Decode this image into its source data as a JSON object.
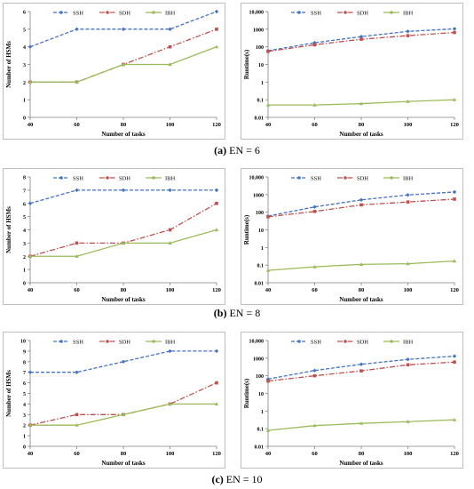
{
  "captions": [
    {
      "letter": "(a)",
      "text": "EN = 6"
    },
    {
      "letter": "(b)",
      "text": "EN = 8"
    },
    {
      "letter": "(c)",
      "text": "EN = 10"
    }
  ],
  "colors": {
    "SSH": "#4472c4",
    "SDH": "#c0504d",
    "IBH": "#9bbb59"
  },
  "chart_data": [
    {
      "id": "a-hsm",
      "type": "line",
      "scale": "linear",
      "xlabel": "Number of tasks",
      "ylabel": "Number of HSMs",
      "x": [
        40,
        60,
        80,
        100,
        120
      ],
      "xlim": [
        40,
        120
      ],
      "ylim": [
        0,
        6
      ],
      "yticks": [
        "0",
        "1",
        "2",
        "3",
        "4",
        "5",
        "6"
      ],
      "series": [
        {
          "name": "SSH",
          "values": [
            4,
            5,
            5,
            5,
            6
          ]
        },
        {
          "name": "SDH",
          "values": [
            2,
            2,
            3,
            4,
            5
          ]
        },
        {
          "name": "IBH",
          "values": [
            2,
            2,
            3,
            3,
            4
          ]
        }
      ]
    },
    {
      "id": "a-rt",
      "type": "line",
      "scale": "log",
      "xlabel": "Number of tasks",
      "ylabel": "Runtime(s)",
      "x": [
        40,
        60,
        80,
        100,
        120
      ],
      "xlim": [
        40,
        120
      ],
      "ylim": [
        0.01,
        10000
      ],
      "yticks": [
        "0.01",
        "0.1",
        "1",
        "10",
        "100",
        "1000",
        "10,000"
      ],
      "series": [
        {
          "name": "SSH",
          "values": [
            60,
            170,
            380,
            750,
            1050
          ]
        },
        {
          "name": "SDH",
          "values": [
            55,
            130,
            270,
            430,
            650
          ]
        },
        {
          "name": "IBH",
          "values": [
            0.05,
            0.05,
            0.06,
            0.08,
            0.1
          ]
        }
      ]
    },
    {
      "id": "b-hsm",
      "type": "line",
      "scale": "linear",
      "xlabel": "Number of tasks",
      "ylabel": "Number of HSMs",
      "x": [
        40,
        60,
        80,
        100,
        120
      ],
      "xlim": [
        40,
        120
      ],
      "ylim": [
        0,
        8
      ],
      "yticks": [
        "0",
        "1",
        "2",
        "3",
        "4",
        "5",
        "6",
        "7",
        "8"
      ],
      "series": [
        {
          "name": "SSH",
          "values": [
            6,
            7,
            7,
            7,
            7
          ]
        },
        {
          "name": "SDH",
          "values": [
            2,
            3,
            3,
            4,
            6
          ]
        },
        {
          "name": "IBH",
          "values": [
            2,
            2,
            3,
            3,
            4
          ]
        }
      ]
    },
    {
      "id": "b-rt",
      "type": "line",
      "scale": "log",
      "xlabel": "Number of tasks",
      "ylabel": "Runtime(s)",
      "x": [
        40,
        60,
        80,
        100,
        120
      ],
      "xlim": [
        40,
        120
      ],
      "ylim": [
        0.01,
        10000
      ],
      "yticks": [
        "0.01",
        "0.1",
        "1",
        "10",
        "100",
        "1000",
        "10,000"
      ],
      "series": [
        {
          "name": "SSH",
          "values": [
            60,
            200,
            500,
            950,
            1400
          ]
        },
        {
          "name": "SDH",
          "values": [
            55,
            110,
            260,
            380,
            550
          ]
        },
        {
          "name": "IBH",
          "values": [
            0.05,
            0.08,
            0.11,
            0.12,
            0.17
          ]
        }
      ]
    },
    {
      "id": "c-hsm",
      "type": "line",
      "scale": "linear",
      "xlabel": "Number of tasks",
      "ylabel": "Number of HSMs",
      "x": [
        40,
        60,
        80,
        100,
        120
      ],
      "xlim": [
        40,
        120
      ],
      "ylim": [
        0,
        10
      ],
      "yticks": [
        "0",
        "1",
        "2",
        "3",
        "4",
        "5",
        "6",
        "7",
        "8",
        "9",
        "10"
      ],
      "series": [
        {
          "name": "SSH",
          "values": [
            7,
            7,
            8,
            9,
            9
          ]
        },
        {
          "name": "SDH",
          "values": [
            2,
            3,
            3,
            4,
            6
          ]
        },
        {
          "name": "IBH",
          "values": [
            2,
            2,
            3,
            4,
            4
          ]
        }
      ]
    },
    {
      "id": "c-rt",
      "type": "line",
      "scale": "log",
      "xlabel": "Number of tasks",
      "ylabel": "Runtime(s)",
      "x": [
        40,
        60,
        80,
        100,
        120
      ],
      "xlim": [
        40,
        120
      ],
      "ylim": [
        0.01,
        10000
      ],
      "yticks": [
        "0.01",
        "0.1",
        "1",
        "10",
        "100",
        "1000",
        "10,000"
      ],
      "series": [
        {
          "name": "SSH",
          "values": [
            65,
            200,
            450,
            850,
            1300
          ]
        },
        {
          "name": "SDH",
          "values": [
            50,
            100,
            190,
            420,
            600
          ]
        },
        {
          "name": "IBH",
          "values": [
            0.08,
            0.15,
            0.2,
            0.25,
            0.32
          ]
        }
      ]
    }
  ]
}
